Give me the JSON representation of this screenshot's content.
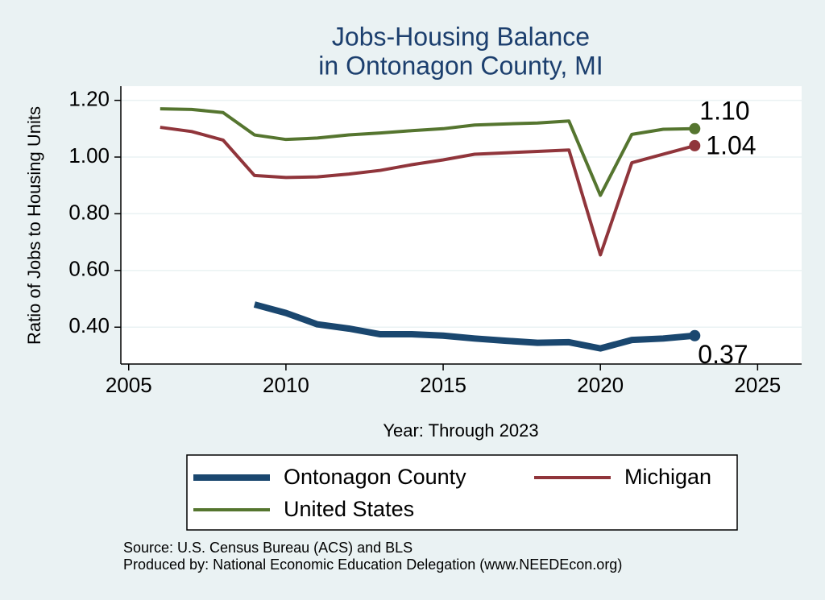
{
  "chart_data": {
    "type": "line",
    "title": [
      "Jobs-Housing Balance",
      "in Ontonagon County, MI"
    ],
    "x_label": "Year: Through 2023",
    "y_label": "Ratio of Jobs to Housing Units",
    "notes": [
      "Source: U.S. Census Bureau (ACS) and BLS",
      "Produced by: National Economic Education Delegation (www.NEEDEcon.org)"
    ],
    "x": [
      2006,
      2007,
      2008,
      2009,
      2010,
      2011,
      2012,
      2013,
      2014,
      2015,
      2016,
      2017,
      2018,
      2019,
      2020,
      2021,
      2022,
      2023
    ],
    "series": [
      {
        "name": "Ontonagon County",
        "color": "#1a476f",
        "line_width": 8,
        "values": [
          null,
          null,
          null,
          0.48,
          0.45,
          0.41,
          0.395,
          0.375,
          0.375,
          0.37,
          0.36,
          0.352,
          0.345,
          0.347,
          0.325,
          0.355,
          0.36,
          0.37
        ],
        "value_labels": [
          null,
          null,
          null,
          null,
          null,
          null,
          null,
          null,
          null,
          null,
          null,
          null,
          null,
          null,
          null,
          null,
          null,
          "0.37"
        ]
      },
      {
        "name": "Michigan",
        "color": "#90353b",
        "line_width": 4,
        "values": [
          1.105,
          1.09,
          1.06,
          0.935,
          0.928,
          0.93,
          0.94,
          0.953,
          0.973,
          0.99,
          1.01,
          1.015,
          1.02,
          1.025,
          0.655,
          0.98,
          1.01,
          1.04
        ],
        "value_labels": [
          null,
          null,
          null,
          null,
          null,
          null,
          null,
          null,
          null,
          null,
          null,
          null,
          null,
          null,
          null,
          null,
          null,
          "1.04"
        ]
      },
      {
        "name": "United States",
        "color": "#55752f",
        "line_width": 4,
        "values": [
          1.17,
          1.168,
          1.157,
          1.078,
          1.062,
          1.067,
          1.078,
          1.085,
          1.093,
          1.1,
          1.113,
          1.117,
          1.12,
          1.127,
          0.865,
          1.08,
          1.098,
          1.1
        ],
        "value_labels": [
          null,
          null,
          null,
          null,
          null,
          null,
          null,
          null,
          null,
          null,
          null,
          null,
          null,
          null,
          null,
          null,
          null,
          "1.10"
        ]
      }
    ],
    "xlim": [
      2004.75,
      2026.4
    ],
    "ylim": [
      0.27,
      1.25
    ],
    "xticks": [
      2005,
      2010,
      2015,
      2020,
      2025
    ],
    "yticks": [
      {
        "value": 0.4,
        "label": "0.40"
      },
      {
        "value": 0.6,
        "label": "0.60"
      },
      {
        "value": 0.8,
        "label": "0.80"
      },
      {
        "value": 1.0,
        "label": "1.00"
      },
      {
        "value": 1.2,
        "label": "1.20"
      }
    ],
    "grid": true
  }
}
